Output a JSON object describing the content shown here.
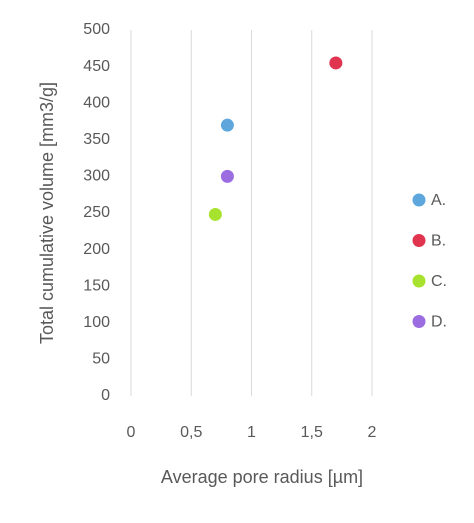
{
  "chart_data": {
    "type": "scatter",
    "x_label": "Average pore radius [µm]",
    "y_label": "Total cumulative volume [mm3/g]",
    "xlim": [
      0,
      2
    ],
    "xticks": [
      0,
      {
        "value": 0.5,
        "label": "0,5"
      },
      1,
      {
        "value": 1.5,
        "label": "1,5"
      },
      2
    ],
    "ylim": [
      0,
      500
    ],
    "yticks": [
      0,
      50,
      100,
      150,
      200,
      250,
      300,
      350,
      400,
      450,
      500
    ],
    "grid": true,
    "legend": "right",
    "series": [
      {
        "name": "A.",
        "color": "#5ea7dc",
        "x": [
          0.8
        ],
        "values": [
          370
        ]
      },
      {
        "name": "B.",
        "color": "#e0344f",
        "x": [
          1.7
        ],
        "values": [
          455
        ]
      },
      {
        "name": "C.",
        "color": "#a6e22e",
        "x": [
          0.7
        ],
        "values": [
          248
        ]
      },
      {
        "name": "D.",
        "color": "#9b6de0",
        "x": [
          0.8
        ],
        "values": [
          300
        ]
      }
    ]
  }
}
